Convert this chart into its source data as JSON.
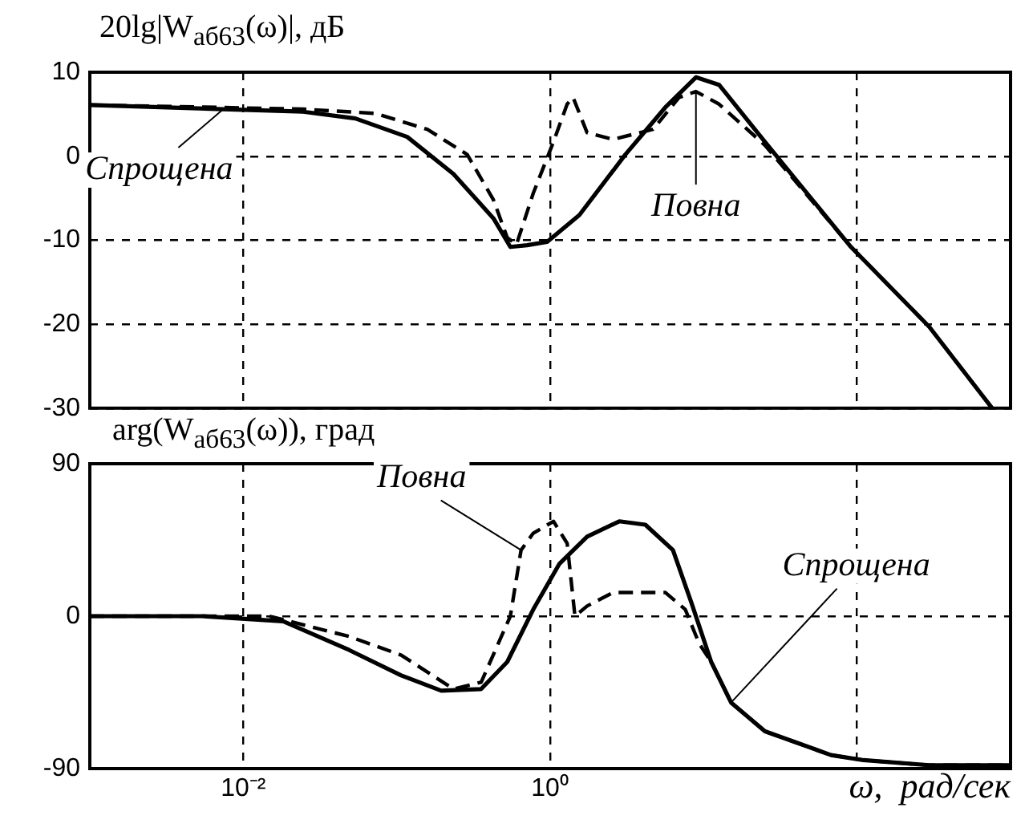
{
  "chart_data": [
    {
      "type": "line",
      "ylabel": "20lg|W$_{аб63}$(ω)|, дБ",
      "log": "x",
      "grid": true,
      "tick_labels": "y",
      "xlim": [
        0.001,
        1000
      ],
      "xticks": [
        {
          "value": 0.01,
          "label": null
        },
        {
          "value": 1,
          "label": null
        },
        {
          "value": 100,
          "label": null
        }
      ],
      "ylim": [
        -30,
        10
      ],
      "yticks": [
        10,
        0,
        -10,
        -20,
        -30
      ],
      "series": [
        {
          "name": "Спрощена",
          "color": "#000000",
          "line_style": "solid",
          "x": [
            0.001,
            0.00741,
            0.0245,
            0.0537,
            0.117,
            0.234,
            0.427,
            0.55,
            0.708,
            0.955,
            1.55,
            3.09,
            5.62,
            8.91,
            12.6,
            25.1,
            91.2,
            295,
            759
          ],
          "values": [
            6.1,
            5.6,
            5.3,
            4.5,
            2.3,
            -2.1,
            -7.4,
            -10.8,
            -10.6,
            -10.2,
            -7,
            0.2,
            5.8,
            9.4,
            8.5,
            1.7,
            -10.8,
            -20.3,
            -30
          ]
        },
        {
          "name": "Повна",
          "color": "#000000",
          "line_style": "dashed",
          "x": [
            0.001,
            0.00741,
            0.0245,
            0.0724,
            0.158,
            0.288,
            0.427,
            0.525,
            0.603,
            0.776,
            1.05,
            1.29,
            1.41,
            1.74,
            2.57,
            4.68,
            6.92,
            8.91,
            12.6,
            25.1,
            91.2,
            295,
            759
          ],
          "values": [
            6.1,
            5.8,
            5.6,
            5.1,
            3.2,
            0.2,
            -5.2,
            -9.7,
            -10.5,
            -4.4,
            1.7,
            6.2,
            7,
            2.8,
            2,
            3.2,
            7,
            7.7,
            6.2,
            1.3,
            -10.8,
            -20.3,
            -30
          ]
        }
      ]
    },
    {
      "type": "line",
      "ylabel": "arg(W$_{аб63}$(ω)), град",
      "xlabel": "ω,  рад/сек",
      "log": "x",
      "grid": true,
      "xlim": [
        0.001,
        1000
      ],
      "xticks": [
        {
          "value": 0.01,
          "label": "10⁻²"
        },
        {
          "value": 1,
          "label": "10⁰"
        },
        {
          "value": 100,
          "label": null
        }
      ],
      "ylim": [
        -90,
        90
      ],
      "yticks": [
        90,
        0,
        -90
      ],
      "series": [
        {
          "name": "Спрощена",
          "color": "#000000",
          "line_style": "solid",
          "x": [
            0.001,
            0.0055,
            0.0182,
            0.049,
            0.107,
            0.195,
            0.355,
            0.525,
            0.776,
            1.15,
            1.74,
            2.82,
            4.17,
            6.31,
            8.32,
            11.2,
            15.1,
            25.1,
            67.6,
            110,
            295,
            1000
          ],
          "values": [
            0,
            0,
            -3,
            -20,
            -35,
            -44,
            -43,
            -27,
            4,
            31,
            47,
            56,
            54,
            39,
            8,
            -27,
            -51,
            -68,
            -82,
            -85,
            -88,
            -88
          ]
        },
        {
          "name": "Повна",
          "color": "#000000",
          "line_style": "dashed",
          "x": [
            0.001,
            0.0148,
            0.049,
            0.107,
            0.234,
            0.355,
            0.55,
            0.646,
            0.776,
            1.05,
            1.29,
            1.45,
            1.74,
            2.57,
            5.62,
            7.59,
            9.33,
            11.2,
            15.1,
            25.1,
            67.6,
            110,
            295,
            1000
          ],
          "values": [
            0,
            0,
            -12,
            -23,
            -43,
            -39,
            0,
            39,
            49,
            56,
            43,
            0,
            6,
            14,
            14,
            4,
            -16,
            -27,
            -51,
            -68,
            -82,
            -85,
            -88,
            -88
          ]
        }
      ]
    }
  ]
}
